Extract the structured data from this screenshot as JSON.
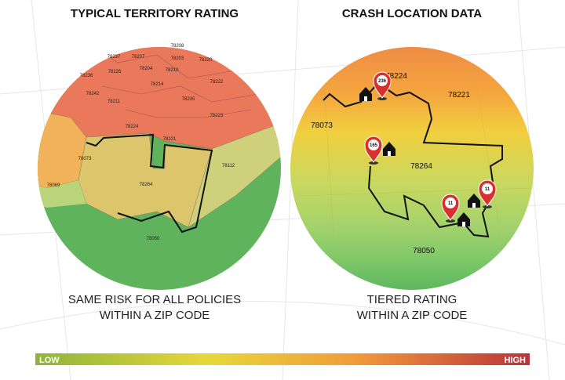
{
  "left": {
    "title": "TYPICAL TERRITORY RATING",
    "zips": [
      "78237",
      "78207",
      "78208",
      "78203",
      "78220",
      "78236",
      "78226",
      "78204",
      "78210",
      "78222",
      "78242",
      "78214",
      "78211",
      "78235",
      "78223",
      "78224",
      "78221",
      "78073",
      "78264",
      "78112",
      "78069",
      "78050"
    ],
    "caption": [
      "SAME RISK FOR ALL POLICIES",
      "WITHIN A ZIP CODE"
    ]
  },
  "right": {
    "title": "CRASH LOCATION DATA",
    "zips": [
      "78224",
      "78221",
      "78073",
      "78264",
      "78050"
    ],
    "pins": [
      236,
      165,
      11,
      11
    ],
    "caption": [
      "TIERED RATING",
      "WITHIN A ZIP CODE"
    ]
  },
  "legend": {
    "low": "LOW",
    "high": "HIGH"
  }
}
